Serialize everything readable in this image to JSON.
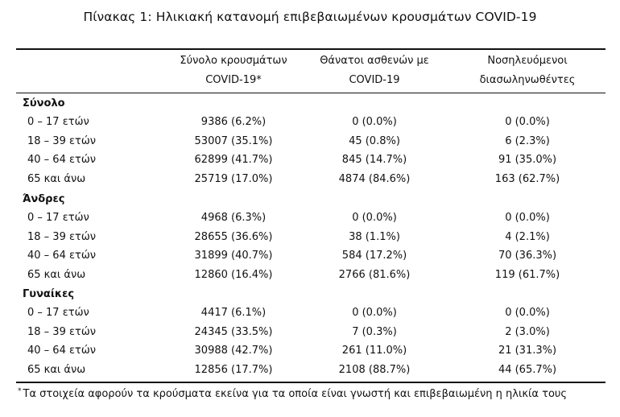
{
  "title": "Πίνακας 1: Ηλικιακή κατανομή επιβεβαιωμένων κρουσμάτων COVID-19",
  "columns": [
    {
      "line1": "Σύνολο κρουσμάτων",
      "line2": "COVID-19*"
    },
    {
      "line1": "Θάνατοι ασθενών με",
      "line2": "COVID-19"
    },
    {
      "line1": "Νοσηλευόμενοι",
      "line2": "διασωληνωθέντες"
    }
  ],
  "groups": [
    {
      "name": "Σύνολο",
      "rows": [
        {
          "label": "0 – 17 ετών",
          "total": "9386 (6.2%)",
          "deaths": "0 (0.0%)",
          "intubated": "0 (0.0%)"
        },
        {
          "label": "18 – 39 ετών",
          "total": "53007 (35.1%)",
          "deaths": "45 (0.8%)",
          "intubated": "6 (2.3%)"
        },
        {
          "label": "40 – 64 ετών",
          "total": "62899 (41.7%)",
          "deaths": "845 (14.7%)",
          "intubated": "91 (35.0%)"
        },
        {
          "label": "65 και άνω",
          "total": "25719 (17.0%)",
          "deaths": "4874 (84.6%)",
          "intubated": "163 (62.7%)"
        }
      ]
    },
    {
      "name": "Άνδρες",
      "rows": [
        {
          "label": "0 – 17 ετών",
          "total": "4968 (6.3%)",
          "deaths": "0 (0.0%)",
          "intubated": "0 (0.0%)"
        },
        {
          "label": "18 – 39 ετών",
          "total": "28655 (36.6%)",
          "deaths": "38 (1.1%)",
          "intubated": "4 (2.1%)"
        },
        {
          "label": "40 – 64 ετών",
          "total": "31899 (40.7%)",
          "deaths": "584 (17.2%)",
          "intubated": "70 (36.3%)"
        },
        {
          "label": "65 και άνω",
          "total": "12860 (16.4%)",
          "deaths": "2766 (81.6%)",
          "intubated": "119 (61.7%)"
        }
      ]
    },
    {
      "name": "Γυναίκες",
      "rows": [
        {
          "label": "0 – 17 ετών",
          "total": "4417 (6.1%)",
          "deaths": "0 (0.0%)",
          "intubated": "0 (0.0%)"
        },
        {
          "label": "18 – 39 ετών",
          "total": "24345 (33.5%)",
          "deaths": "7 (0.3%)",
          "intubated": "2 (3.0%)"
        },
        {
          "label": "40 – 64 ετών",
          "total": "30988 (42.7%)",
          "deaths": "261 (11.0%)",
          "intubated": "21 (31.3%)"
        },
        {
          "label": "65 και άνω",
          "total": "12856 (17.7%)",
          "deaths": "2108 (88.7%)",
          "intubated": "44 (65.7%)"
        }
      ]
    }
  ],
  "footnote": {
    "mark": "*",
    "text": "Τα στοιχεία αφορούν τα κρούσματα εκείνα για τα οποία είναι γνωστή και επιβεβαιωμένη η ηλικία τους"
  }
}
